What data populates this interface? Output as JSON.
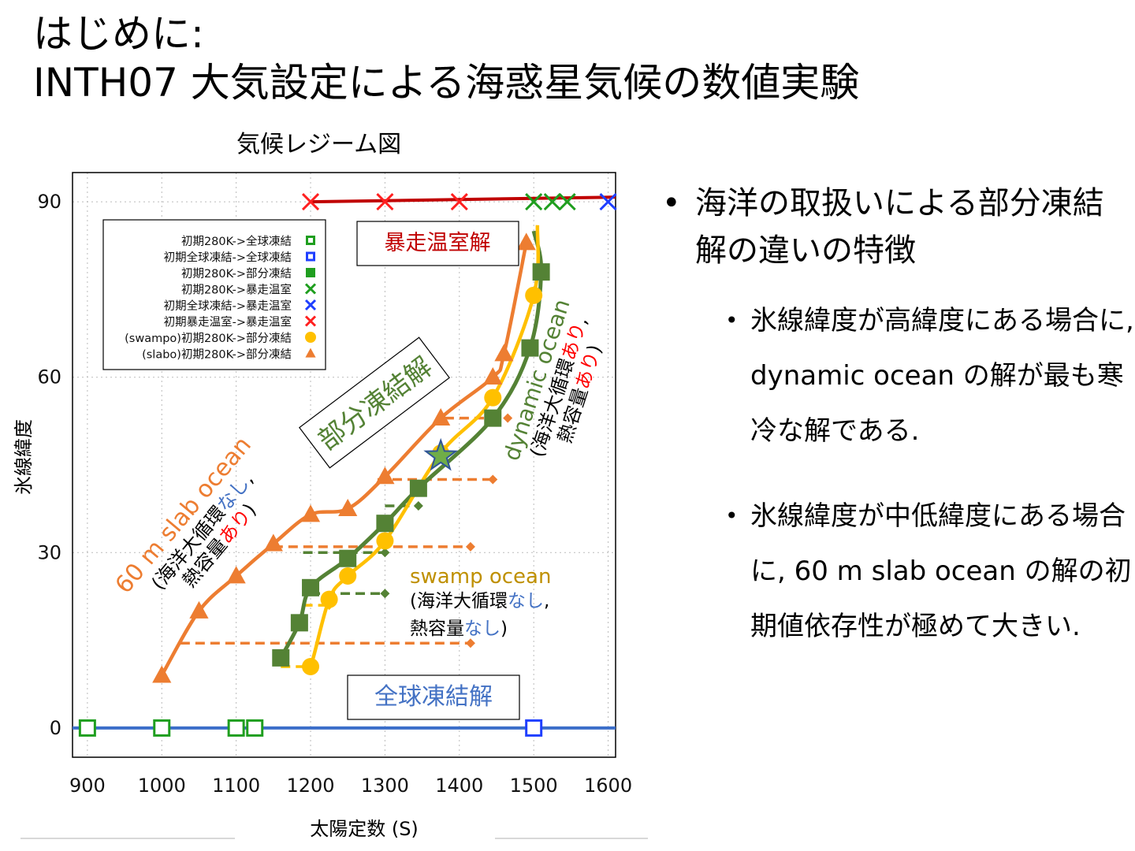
{
  "slide": {
    "title_line1": "はじめに:",
    "title_line2": "INTH07 大気設定による海惑星気候の数値実験",
    "chart_title": "気候レジーム図"
  },
  "bullets": {
    "main": "海洋の取扱いによる部分凍結解の違いの特徴",
    "sub1": "氷線緯度が高緯度にある場合に, dynamic ocean の解が最も寒冷な解である.",
    "sub2": "氷線緯度が中低緯度にある場合に, 60 m slab ocean の解の初期値依存性が極めて大きい."
  },
  "colors": {
    "red": "#c00000",
    "blue": "#3b6ec9",
    "green": "#548235",
    "orange": "#ed7d31",
    "yellow": "#ffc000",
    "swamp_text": "#bf9000",
    "text_red": "#ff0000",
    "text_blue": "#4472c4"
  },
  "chart_data": {
    "type": "scatter",
    "xlabel": "太陽定数 (S)",
    "ylabel": "氷線緯度",
    "xlim": [
      880,
      1610
    ],
    "ylim": [
      -5,
      95
    ],
    "xticks": [
      900,
      1000,
      1100,
      1200,
      1300,
      1400,
      1500,
      1600
    ],
    "yticks": [
      0,
      30,
      60,
      90
    ],
    "grid": true,
    "legend_position": "top-left",
    "legend": [
      {
        "label": "初期280K->全球凍結",
        "marker": "square-open",
        "color": "#1f9e1f"
      },
      {
        "label": "初期全球凍結->全球凍結",
        "marker": "square-open",
        "color": "#1f3fff"
      },
      {
        "label": "初期280K->部分凍結",
        "marker": "square",
        "color": "#1f9e1f"
      },
      {
        "label": "初期280K->暴走温室",
        "marker": "cross",
        "color": "#1f9e1f"
      },
      {
        "label": "初期全球凍結->暴走温室",
        "marker": "cross",
        "color": "#1f3fff"
      },
      {
        "label": "初期暴走温室->暴走温室",
        "marker": "cross",
        "color": "#ff2020"
      },
      {
        "label": "(swampo)初期280K->部分凍結",
        "marker": "circle",
        "color": "#ffc000"
      },
      {
        "label": "(slabo)初期280K->部分凍結",
        "marker": "triangle",
        "color": "#ed7d31"
      }
    ],
    "series": [
      {
        "name": "初期280K->全球凍結",
        "color": "#1f9e1f",
        "marker": "square-open",
        "points": [
          [
            900,
            0
          ],
          [
            1000,
            0
          ],
          [
            1100,
            0
          ],
          [
            1125,
            0
          ]
        ]
      },
      {
        "name": "初期全球凍結->全球凍結",
        "color": "#1f3fff",
        "marker": "square-open",
        "points": [
          [
            1500,
            0
          ]
        ]
      },
      {
        "name": "初期280K->部分凍結",
        "color": "#1f9e1f",
        "marker": "square",
        "points": [
          [
            1160,
            12
          ],
          [
            1185,
            18
          ],
          [
            1200,
            24
          ],
          [
            1250,
            29
          ],
          [
            1300,
            35
          ],
          [
            1345,
            41
          ],
          [
            1445,
            53
          ],
          [
            1495,
            65
          ],
          [
            1510,
            78
          ]
        ]
      },
      {
        "name": "初期280K->暴走温室",
        "color": "#1f9e1f",
        "marker": "cross",
        "points": [
          [
            1500,
            90
          ],
          [
            1525,
            90
          ],
          [
            1545,
            90
          ]
        ]
      },
      {
        "name": "初期全球凍結->暴走温室",
        "color": "#1f3fff",
        "marker": "cross",
        "points": [
          [
            1600,
            90
          ]
        ]
      },
      {
        "name": "初期暴走温室->暴走温室",
        "color": "#ff2020",
        "marker": "cross",
        "points": [
          [
            1200,
            90
          ],
          [
            1300,
            90
          ],
          [
            1400,
            90
          ]
        ]
      },
      {
        "name": "(swampo)初期280K->部分凍結",
        "color": "#ffc000",
        "marker": "circle",
        "points": [
          [
            1200,
            10.5
          ],
          [
            1225,
            22
          ],
          [
            1250,
            26
          ],
          [
            1300,
            32
          ],
          [
            1375,
            47
          ],
          [
            1445,
            56.5
          ],
          [
            1500,
            74
          ]
        ]
      },
      {
        "name": "(slabo)初期280K->部分凍結",
        "color": "#ed7d31",
        "marker": "triangle",
        "points": [
          [
            1000,
            9
          ],
          [
            1050,
            20
          ],
          [
            1100,
            26
          ],
          [
            1150,
            31.5
          ],
          [
            1200,
            36.5
          ],
          [
            1250,
            37.5
          ],
          [
            1300,
            43
          ],
          [
            1375,
            53
          ],
          [
            1445,
            60
          ],
          [
            1460,
            64
          ],
          [
            1490,
            83
          ]
        ]
      }
    ],
    "annotations": {
      "runaway_box": "暴走温室解",
      "partial_label": "部分凍結解",
      "snowball_box": "全球凍結解",
      "slab_name": "60 m slab ocean",
      "slab_desc_a": "(海洋大循環",
      "slab_desc_b": "なし",
      "slab_desc_c": ",",
      "slab_desc_d": "熱容量",
      "slab_desc_e": "あり",
      "slab_desc_f": ")",
      "dyn_name": "dynamic ocean",
      "dyn_desc_a": "(海洋大循環",
      "dyn_desc_b": "あり",
      "dyn_desc_c": ",",
      "dyn_desc_d": "熱容量",
      "dyn_desc_e": "あり",
      "dyn_desc_f": ")",
      "swamp_name": "swamp ocean",
      "swamp_desc_a": "(海洋大循環",
      "swamp_desc_b": "なし",
      "swamp_desc_c": ",",
      "swamp_desc_d": "熱容量",
      "swamp_desc_e": "なし",
      "swamp_desc_f": ")"
    }
  }
}
